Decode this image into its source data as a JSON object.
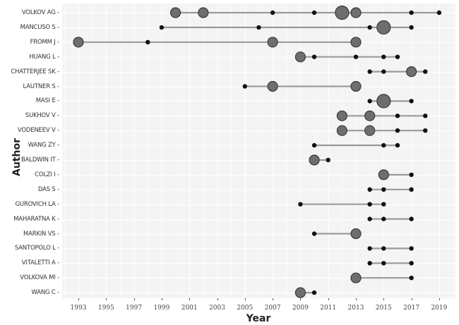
{
  "chart_data": {
    "type": "scatter",
    "subtype": "author-timeline (lollipop / production over time)",
    "title": "",
    "xlabel": "Year",
    "ylabel": "Author",
    "xlim": [
      1992,
      2020
    ],
    "x_ticks": [
      "1993",
      "1995",
      "1997",
      "1999",
      "2001",
      "2003",
      "2005",
      "2007",
      "2009",
      "2011",
      "2013",
      "2015",
      "2017",
      "2019"
    ],
    "grid": true,
    "legend": null,
    "size_levels": {
      "s": "small dot",
      "L": "large circle",
      "XL": "extra-large circle"
    },
    "categories": [
      "VOLKOV AG",
      "MANCUSO S",
      "FROMM J",
      "HUANG L",
      "CHATTERJEE SK",
      "LAUTNER S",
      "MASI E",
      "SUKHOV V",
      "VODENEEV V",
      "WANG ZY",
      "BALDWIN IT",
      "COLZI I",
      "DAS S",
      "GUROVICH LA",
      "MAHARATNA K",
      "MARKIN VS",
      "SANTOPOLO L",
      "VITALETTI A",
      "VOLKOVA MI",
      "WANG C"
    ],
    "series": [
      {
        "author": "VOLKOV AG",
        "points": [
          [
            2000,
            "L"
          ],
          [
            2002,
            "L"
          ],
          [
            2007,
            "s"
          ],
          [
            2010,
            "s"
          ],
          [
            2012,
            "XL"
          ],
          [
            2013,
            "L"
          ],
          [
            2017,
            "s"
          ],
          [
            2019,
            "s"
          ]
        ]
      },
      {
        "author": "MANCUSO S",
        "points": [
          [
            1999,
            "s"
          ],
          [
            2006,
            "s"
          ],
          [
            2014,
            "s"
          ],
          [
            2015,
            "XL"
          ],
          [
            2017,
            "s"
          ]
        ]
      },
      {
        "author": "FROMM J",
        "points": [
          [
            1993,
            "L"
          ],
          [
            1998,
            "s"
          ],
          [
            2007,
            "L"
          ],
          [
            2013,
            "L"
          ]
        ]
      },
      {
        "author": "HUANG L",
        "points": [
          [
            2009,
            "L"
          ],
          [
            2010,
            "s"
          ],
          [
            2013,
            "s"
          ],
          [
            2015,
            "s"
          ],
          [
            2016,
            "s"
          ]
        ]
      },
      {
        "author": "CHATTERJEE SK",
        "points": [
          [
            2014,
            "s"
          ],
          [
            2015,
            "s"
          ],
          [
            2017,
            "L"
          ],
          [
            2018,
            "s"
          ]
        ]
      },
      {
        "author": "LAUTNER S",
        "points": [
          [
            2005,
            "s"
          ],
          [
            2007,
            "L"
          ],
          [
            2013,
            "L"
          ]
        ]
      },
      {
        "author": "MASI E",
        "points": [
          [
            2014,
            "s"
          ],
          [
            2015,
            "XL"
          ],
          [
            2017,
            "s"
          ]
        ]
      },
      {
        "author": "SUKHOV V",
        "points": [
          [
            2012,
            "L"
          ],
          [
            2014,
            "L"
          ],
          [
            2016,
            "s"
          ],
          [
            2018,
            "s"
          ]
        ]
      },
      {
        "author": "VODENEEV V",
        "points": [
          [
            2012,
            "L"
          ],
          [
            2014,
            "L"
          ],
          [
            2016,
            "s"
          ],
          [
            2018,
            "s"
          ]
        ]
      },
      {
        "author": "WANG ZY",
        "points": [
          [
            2010,
            "s"
          ],
          [
            2015,
            "s"
          ],
          [
            2016,
            "s"
          ]
        ]
      },
      {
        "author": "BALDWIN IT",
        "points": [
          [
            2010,
            "L"
          ],
          [
            2011,
            "s"
          ]
        ]
      },
      {
        "author": "COLZI I",
        "points": [
          [
            2015,
            "L"
          ],
          [
            2017,
            "s"
          ]
        ]
      },
      {
        "author": "DAS S",
        "points": [
          [
            2014,
            "s"
          ],
          [
            2015,
            "s"
          ],
          [
            2017,
            "s"
          ]
        ]
      },
      {
        "author": "GUROVICH LA",
        "points": [
          [
            2009,
            "s"
          ],
          [
            2014,
            "s"
          ],
          [
            2015,
            "s"
          ]
        ]
      },
      {
        "author": "MAHARATNA K",
        "points": [
          [
            2014,
            "s"
          ],
          [
            2015,
            "s"
          ],
          [
            2017,
            "s"
          ]
        ]
      },
      {
        "author": "MARKIN VS",
        "points": [
          [
            2010,
            "s"
          ],
          [
            2013,
            "L"
          ]
        ]
      },
      {
        "author": "SANTOPOLO L",
        "points": [
          [
            2014,
            "s"
          ],
          [
            2015,
            "s"
          ],
          [
            2017,
            "s"
          ]
        ]
      },
      {
        "author": "VITALETTI A",
        "points": [
          [
            2014,
            "s"
          ],
          [
            2015,
            "s"
          ],
          [
            2017,
            "s"
          ]
        ]
      },
      {
        "author": "VOLKOVA MI",
        "points": [
          [
            2013,
            "L"
          ],
          [
            2017,
            "s"
          ]
        ]
      },
      {
        "author": "WANG C",
        "points": [
          [
            2009,
            "L"
          ],
          [
            2010,
            "s"
          ]
        ]
      }
    ]
  },
  "colors": {
    "panel_bg": "#f4f4f4",
    "grid": "#ffffff",
    "line": "#9a9a9a",
    "small_dot": "#111111",
    "large_dot_fill": "#6e6e6e",
    "large_dot_stroke": "#3a3a3a"
  }
}
